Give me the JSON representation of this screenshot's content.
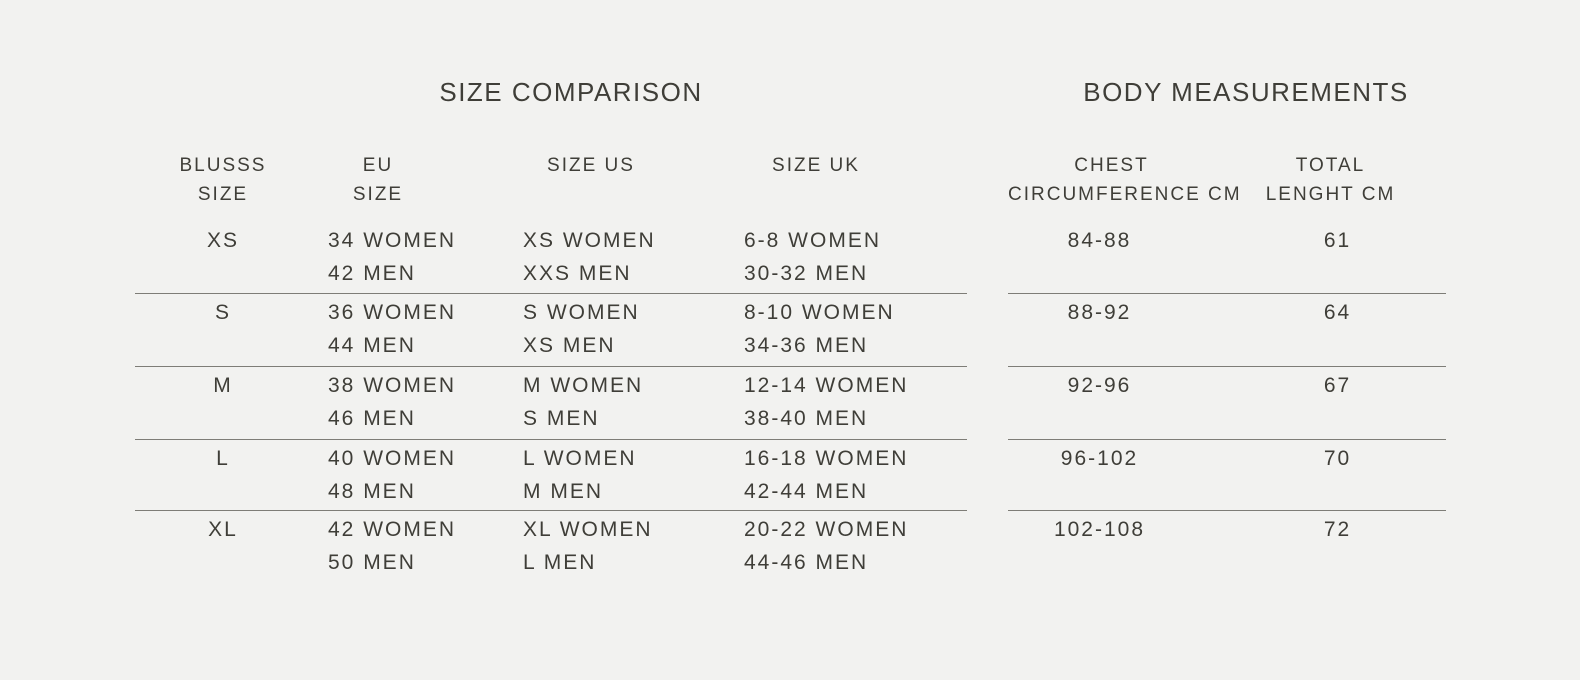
{
  "colors": {
    "background": "#f2f2f0",
    "text": "#3f3e38",
    "divider": "#7e7d77"
  },
  "size_comparison": {
    "title": "SIZE COMPARISON",
    "columns": [
      [
        "BLUSSS",
        "SIZE"
      ],
      [
        "EU",
        "SIZE"
      ],
      [
        "SIZE US"
      ],
      [
        "SIZE UK"
      ]
    ],
    "rows": [
      {
        "size": "XS",
        "eu": [
          "34 WOMEN",
          "42 MEN"
        ],
        "us": [
          "XS WOMEN",
          "XXS MEN"
        ],
        "uk": [
          "6-8 WOMEN",
          "30-32 MEN"
        ]
      },
      {
        "size": "S",
        "eu": [
          "36 WOMEN",
          "44 MEN"
        ],
        "us": [
          "S WOMEN",
          "XS MEN"
        ],
        "uk": [
          "8-10 WOMEN",
          "34-36 MEN"
        ]
      },
      {
        "size": "M",
        "eu": [
          "38 WOMEN",
          "46 MEN"
        ],
        "us": [
          "M WOMEN",
          "S MEN"
        ],
        "uk": [
          "12-14 WOMEN",
          "38-40 MEN"
        ]
      },
      {
        "size": "L",
        "eu": [
          "40 WOMEN",
          "48 MEN"
        ],
        "us": [
          "L WOMEN",
          "M MEN"
        ],
        "uk": [
          "16-18 WOMEN",
          "42-44 MEN"
        ]
      },
      {
        "size": "XL",
        "eu": [
          "42 WOMEN",
          "50 MEN"
        ],
        "us": [
          "XL WOMEN",
          "L MEN"
        ],
        "uk": [
          "20-22 WOMEN",
          "44-46 MEN"
        ]
      }
    ]
  },
  "body_measurements": {
    "title": "BODY MEASUREMENTS",
    "columns": [
      [
        "CHEST",
        "CIRCUMFERENCE CM"
      ],
      [
        "TOTAL",
        "LENGHT CM"
      ]
    ],
    "rows": [
      {
        "chest": "84-88",
        "length": "61"
      },
      {
        "chest": "88-92",
        "length": "64"
      },
      {
        "chest": "92-96",
        "length": "67"
      },
      {
        "chest": "96-102",
        "length": "70"
      },
      {
        "chest": "102-108",
        "length": "72"
      }
    ]
  }
}
